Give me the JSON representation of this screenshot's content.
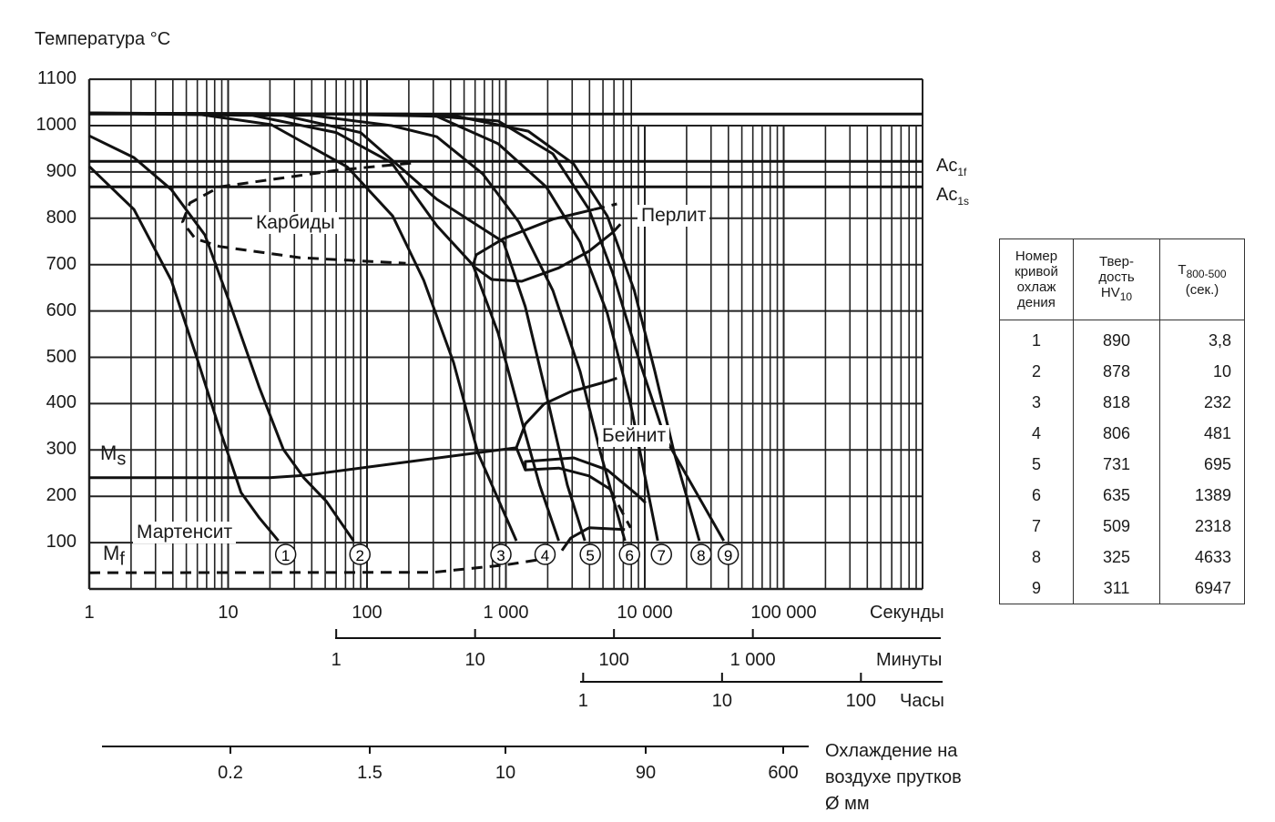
{
  "chart_data": {
    "type": "line",
    "title": "",
    "ylabel": "Температура  °C",
    "xlabel": "Секунды",
    "x_scale": "log",
    "xlim": [
      1,
      1000000
    ],
    "ylim": [
      0,
      1100
    ],
    "grid": true,
    "yticks": [
      100,
      200,
      300,
      400,
      500,
      600,
      700,
      800,
      900,
      1000,
      1100
    ],
    "xticks": [
      {
        "value": 1,
        "label": "1"
      },
      {
        "value": 10,
        "label": "10"
      },
      {
        "value": 100,
        "label": "100"
      },
      {
        "value": 1000,
        "label": "1 000"
      },
      {
        "value": 10000,
        "label": "10 000"
      },
      {
        "value": 100000,
        "label": "100 000"
      }
    ],
    "secondary_axes": [
      {
        "label": "Минуты",
        "ticks": [
          {
            "seconds": 60,
            "label": "1"
          },
          {
            "seconds": 600,
            "label": "10"
          },
          {
            "seconds": 6000,
            "label": "100"
          },
          {
            "seconds": 60000,
            "label": "1 000"
          }
        ]
      },
      {
        "label": "Часы",
        "ticks": [
          {
            "seconds": 3600,
            "label": "1"
          },
          {
            "seconds": 36000,
            "label": "10"
          },
          {
            "seconds": 360000,
            "label": "100"
          }
        ]
      },
      {
        "label": "Охлаждение на воздухе прутков",
        "label2": "Ø мм",
        "ticks": [
          {
            "label": "0.2"
          },
          {
            "label": "1.5"
          },
          {
            "label": "10"
          },
          {
            "label": "90"
          },
          {
            "label": "600"
          }
        ]
      }
    ],
    "reference_lines": [
      {
        "main": "Ac",
        "sub": "1f",
        "T": 923
      },
      {
        "main": "Ac",
        "sub": "1s",
        "T": 868
      },
      {
        "T": 1025
      }
    ],
    "curves": [
      {
        "name": "1",
        "points": [
          [
            1,
            912
          ],
          [
            2.1,
            819
          ],
          [
            3.9,
            666
          ],
          [
            6.1,
            489
          ],
          [
            8.3,
            363
          ],
          [
            12.4,
            208
          ],
          [
            16.8,
            153
          ],
          [
            23,
            104
          ]
        ]
      },
      {
        "name": "2",
        "points": [
          [
            1,
            978
          ],
          [
            2.1,
            931
          ],
          [
            3.9,
            862
          ],
          [
            6.8,
            764
          ],
          [
            10.1,
            623
          ],
          [
            16.8,
            434
          ],
          [
            25,
            301
          ],
          [
            35,
            240
          ],
          [
            51,
            189
          ],
          [
            80,
            104
          ]
        ]
      },
      {
        "name": "3",
        "points": [
          [
            1,
            1027
          ],
          [
            6,
            1025
          ],
          [
            20.5,
            1002
          ],
          [
            72,
            911
          ],
          [
            153,
            805
          ],
          [
            256,
            666
          ],
          [
            420,
            489
          ],
          [
            630,
            293
          ],
          [
            1190,
            104
          ]
        ]
      },
      {
        "name": "4",
        "points": [
          [
            1,
            1027
          ],
          [
            15,
            1022
          ],
          [
            60,
            985
          ],
          [
            150,
            920
          ],
          [
            318,
            784
          ],
          [
            580,
            699
          ],
          [
            880,
            552
          ],
          [
            1300,
            363
          ],
          [
            1750,
            224
          ],
          [
            2400,
            104
          ]
        ]
      },
      {
        "name": "5",
        "points": [
          [
            1,
            1027
          ],
          [
            25,
            1022
          ],
          [
            90,
            985
          ],
          [
            318,
            841
          ],
          [
            960,
            749
          ],
          [
            1380,
            609
          ],
          [
            2030,
            399
          ],
          [
            2770,
            224
          ],
          [
            3700,
            104
          ]
        ]
      },
      {
        "name": "6",
        "points": [
          [
            1,
            1027
          ],
          [
            40,
            1022
          ],
          [
            150,
            1000
          ],
          [
            318,
            976
          ],
          [
            680,
            896
          ],
          [
            1240,
            792
          ],
          [
            2180,
            644
          ],
          [
            3420,
            470
          ],
          [
            4810,
            293
          ],
          [
            7200,
            104
          ]
        ]
      },
      {
        "name": "7",
        "points": [
          [
            1,
            1027
          ],
          [
            60,
            1025
          ],
          [
            318,
            1020
          ],
          [
            880,
            961
          ],
          [
            1950,
            868
          ],
          [
            3420,
            749
          ],
          [
            5370,
            595
          ],
          [
            7900,
            399
          ],
          [
            12400,
            104
          ]
        ]
      },
      {
        "name": "8",
        "points": [
          [
            1,
            1027
          ],
          [
            100,
            1025
          ],
          [
            400,
            1023
          ],
          [
            1450,
            988
          ],
          [
            3080,
            917
          ],
          [
            5370,
            805
          ],
          [
            8400,
            644
          ],
          [
            11800,
            470
          ],
          [
            16300,
            293
          ],
          [
            24700,
            104
          ]
        ]
      },
      {
        "name": "9",
        "points": [
          [
            1,
            1027
          ],
          [
            200,
            1025
          ],
          [
            880,
            1010
          ],
          [
            2180,
            939
          ],
          [
            3970,
            819
          ],
          [
            5900,
            680
          ],
          [
            8900,
            503
          ],
          [
            13900,
            328
          ],
          [
            37000,
            104
          ]
        ]
      }
    ],
    "phase_lines": [
      {
        "region": "carbides",
        "dashed": true,
        "points": [
          [
            207,
            919
          ],
          [
            62,
            904
          ],
          [
            8.7,
            868
          ],
          [
            5.3,
            833
          ],
          [
            4.7,
            792
          ],
          [
            5.8,
            756
          ],
          [
            8.7,
            739
          ],
          [
            33,
            715
          ],
          [
            190,
            703
          ]
        ]
      },
      {
        "region": "pearlite",
        "dashed": false,
        "points": [
          [
            4300,
            819
          ],
          [
            2180,
            798
          ],
          [
            960,
            756
          ],
          [
            610,
            721
          ],
          [
            580,
            697
          ],
          [
            790,
            668
          ],
          [
            1300,
            664
          ],
          [
            2400,
            693
          ],
          [
            3970,
            729
          ],
          [
            5900,
            770
          ]
        ]
      },
      {
        "region": "pearlite",
        "dashed": true,
        "points": [
          [
            4300,
            819
          ],
          [
            6300,
            831
          ]
        ]
      },
      {
        "region": "pearlite",
        "dashed": true,
        "points": [
          [
            5900,
            770
          ],
          [
            7200,
            798
          ]
        ]
      },
      {
        "region": "bainite",
        "dashed": false,
        "points": [
          [
            1190,
            305
          ],
          [
            1380,
            356
          ],
          [
            1880,
            399
          ],
          [
            2930,
            426
          ],
          [
            5370,
            448
          ]
        ]
      },
      {
        "region": "bainite",
        "dashed": true,
        "points": [
          [
            5370,
            448
          ],
          [
            6300,
            455
          ]
        ]
      },
      {
        "region": "bainite",
        "dashed": false,
        "points": [
          [
            1190,
            305
          ],
          [
            1380,
            257
          ],
          [
            1380,
            275
          ],
          [
            3080,
            283
          ],
          [
            5370,
            257
          ],
          [
            8900,
            202
          ]
        ]
      },
      {
        "region": "bainite",
        "dashed": true,
        "points": [
          [
            8900,
            202
          ],
          [
            11000,
            175
          ]
        ]
      },
      {
        "region": "bainite",
        "dashed": false,
        "points": [
          [
            1380,
            257
          ],
          [
            2400,
            261
          ],
          [
            3970,
            244
          ],
          [
            5600,
            216
          ]
        ]
      },
      {
        "region": "bainite",
        "dashed": true,
        "points": [
          [
            5600,
            216
          ],
          [
            7900,
            132
          ]
        ]
      },
      {
        "region": "bainite",
        "dashed": false,
        "points": [
          [
            2530,
            83
          ],
          [
            2930,
            110
          ],
          [
            3970,
            132
          ],
          [
            7200,
            128
          ]
        ]
      },
      {
        "region": "Ms",
        "dashed": false,
        "points": [
          [
            1,
            240
          ],
          [
            20,
            240
          ],
          [
            35,
            245
          ],
          [
            1190,
            305
          ]
        ]
      },
      {
        "region": "Mf",
        "dashed": true,
        "points": [
          [
            1,
            35
          ],
          [
            300,
            36
          ],
          [
            1000,
            52
          ],
          [
            2000,
            66
          ],
          [
            2400,
            75
          ]
        ]
      }
    ],
    "annotations": {
      "carbides": "Карбиды",
      "pearlite": "Перлит",
      "bainite": "Бейнит",
      "martensite": "Мартенсит",
      "ms_main": "M",
      "ms_sub": "s",
      "mf_main": "M",
      "mf_sub": "f"
    }
  },
  "table": {
    "headers": [
      "Номер\nкривой\nохлаж\nдения",
      "Твер-\nдость\nHV",
      "T"
    ],
    "header_subs": [
      "",
      "10",
      "800-500"
    ],
    "header_tail": [
      "",
      "",
      "\n(сек.)"
    ],
    "rows": [
      [
        "1",
        "890",
        "3,8"
      ],
      [
        "2",
        "878",
        "10"
      ],
      [
        "3",
        "818",
        "232"
      ],
      [
        "4",
        "806",
        "481"
      ],
      [
        "5",
        "731",
        "695"
      ],
      [
        "6",
        "635",
        "1389"
      ],
      [
        "7",
        "509",
        "2318"
      ],
      [
        "8",
        "325",
        "4633"
      ],
      [
        "9",
        "311",
        "6947"
      ]
    ]
  }
}
